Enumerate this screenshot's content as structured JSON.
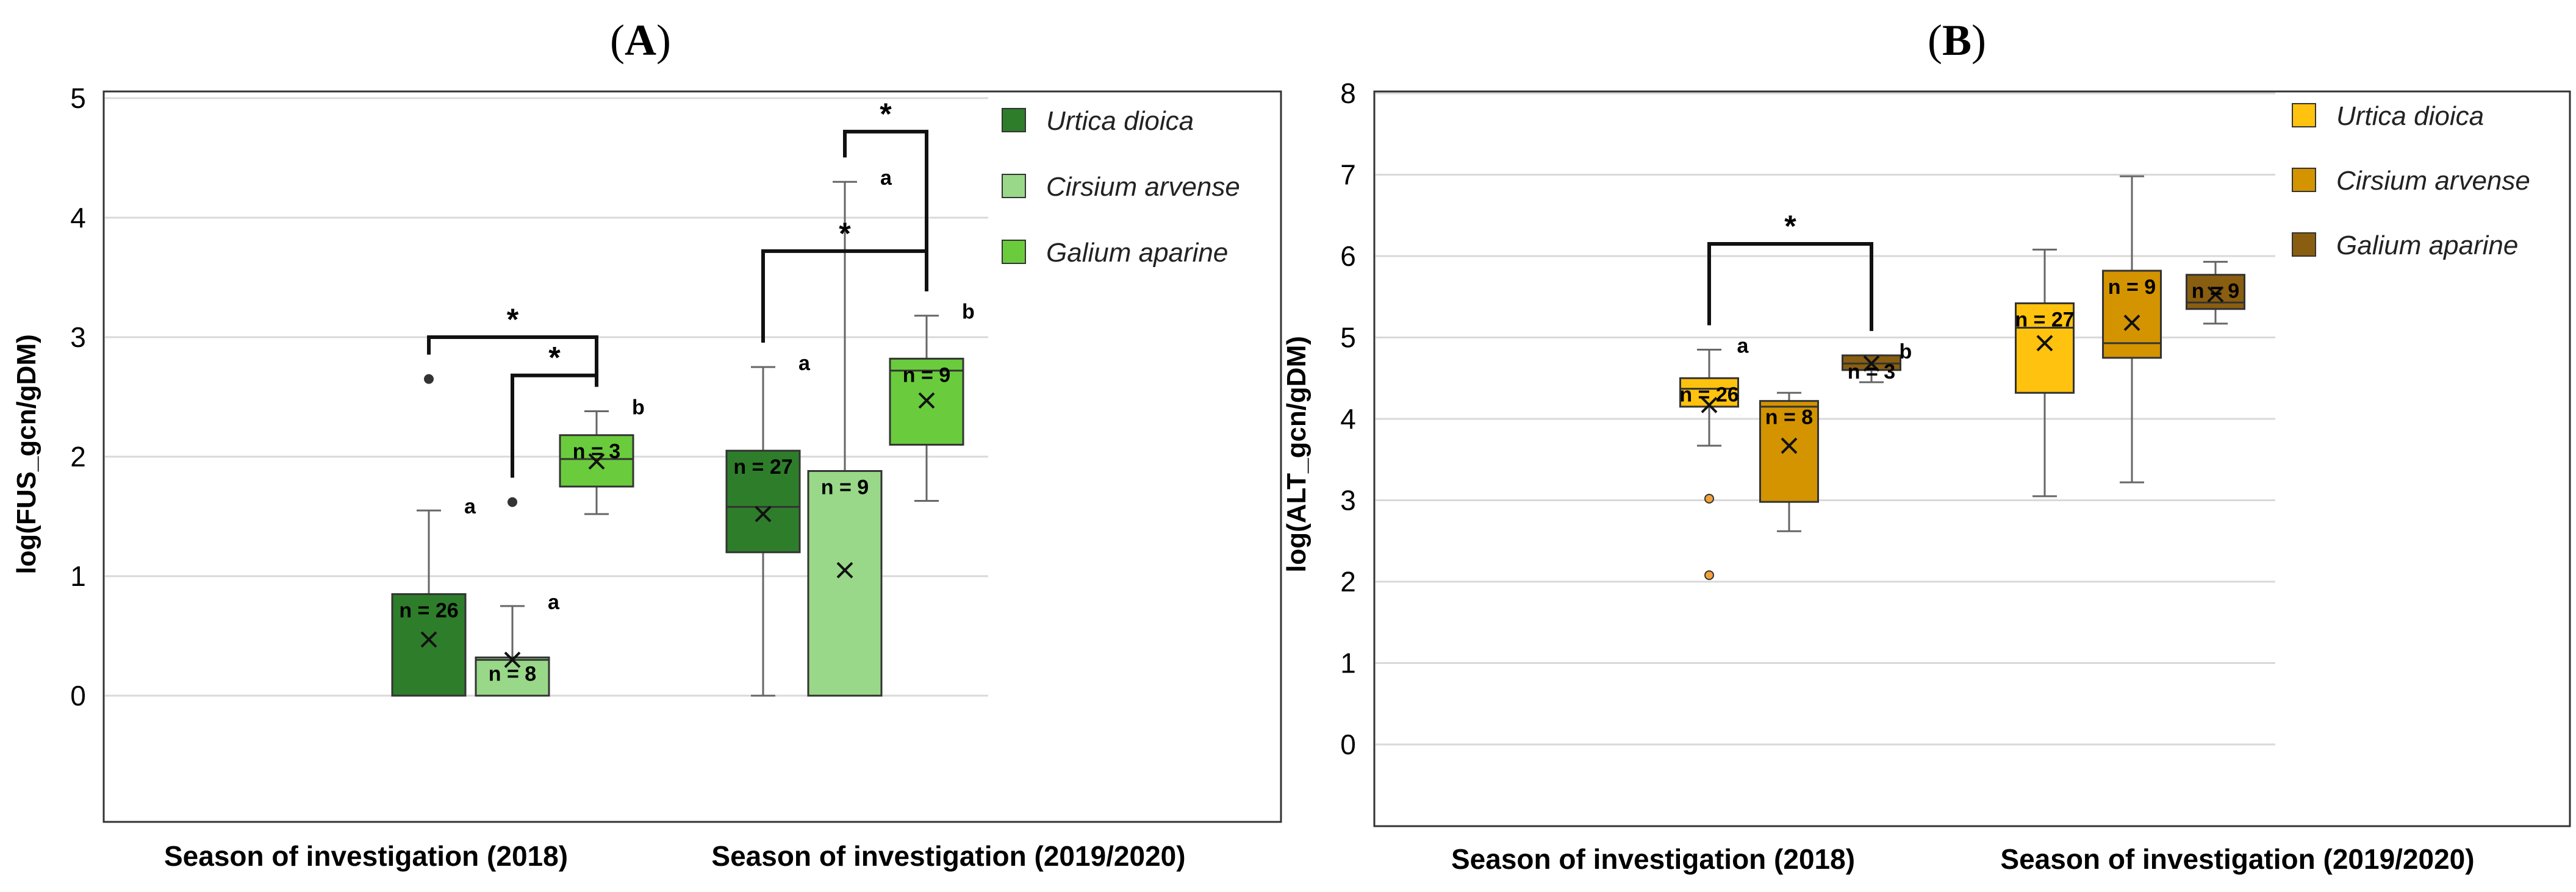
{
  "chart_data": [
    {
      "type": "box",
      "panel_label": "A",
      "ylabel": "log(FUS_gcn/gDM)",
      "ylim": [
        -1,
        5
      ],
      "yticks": [
        0,
        1,
        2,
        3,
        4,
        5
      ],
      "gridlines": true,
      "legend_position": "top-right",
      "groups": [
        "Season of investigation (2018)",
        "Season of investigation (2019/2020)"
      ],
      "series": [
        {
          "name": "Urtica dioica",
          "color": "#2e7d2a"
        },
        {
          "name": "Cirsium arvense",
          "color": "#98d888"
        },
        {
          "name": "Galium aparine",
          "color": "#6acc3c"
        }
      ],
      "boxes": [
        {
          "group": 0,
          "series": 0,
          "min": 0,
          "q1": 0,
          "median": 0,
          "q3": 0.85,
          "max": 1.55,
          "mean": 0.47,
          "outliers": [
            2.65
          ],
          "n_label": "n = 26",
          "letter": "a"
        },
        {
          "group": 0,
          "series": 1,
          "min": 0,
          "q1": 0,
          "median": 0.3,
          "q3": 0.32,
          "max": 0.75,
          "mean": 0.3,
          "outliers": [
            1.62
          ],
          "n_label": "n = 8",
          "letter": "a"
        },
        {
          "group": 0,
          "series": 2,
          "min": 1.52,
          "q1": 1.75,
          "median": 1.98,
          "q3": 2.18,
          "max": 2.38,
          "mean": 1.96,
          "outliers": [],
          "n_label": "n = 3",
          "letter": "b"
        },
        {
          "group": 1,
          "series": 0,
          "min": 0,
          "q1": 1.2,
          "median": 1.58,
          "q3": 2.05,
          "max": 2.75,
          "mean": 1.52,
          "outliers": [],
          "n_label": "n = 27",
          "letter": "a"
        },
        {
          "group": 1,
          "series": 1,
          "min": 0,
          "q1": 0,
          "median": 0,
          "q3": 1.88,
          "max": 4.3,
          "mean": 1.05,
          "outliers": [],
          "n_label": "n = 9",
          "letter": "a"
        },
        {
          "group": 1,
          "series": 2,
          "min": 1.63,
          "q1": 2.1,
          "median": 2.72,
          "q3": 2.82,
          "max": 3.18,
          "mean": 2.47,
          "outliers": [],
          "n_label": "n = 9",
          "letter": "b"
        }
      ],
      "significance": [
        {
          "from": [
            0,
            0
          ],
          "to": [
            0,
            2
          ],
          "level": 3.0,
          "label": "*"
        },
        {
          "from": [
            0,
            1
          ],
          "to": [
            0,
            2
          ],
          "level": 2.68,
          "label": "*"
        },
        {
          "from": [
            1,
            0
          ],
          "to": [
            1,
            2
          ],
          "level": 3.72,
          "label": "*"
        },
        {
          "from": [
            1,
            1
          ],
          "to": [
            1,
            2
          ],
          "level": 4.72,
          "label": "*"
        }
      ]
    },
    {
      "type": "box",
      "panel_label": "B",
      "ylabel": "log(ALT_gcn/gDM)",
      "ylim": [
        -1,
        8
      ],
      "yticks": [
        0,
        1,
        2,
        3,
        4,
        5,
        6,
        7,
        8
      ],
      "gridlines": true,
      "legend_position": "top-right",
      "groups": [
        "Season of investigation (2018)",
        "Season of investigation (2019/2020)"
      ],
      "series": [
        {
          "name": "Urtica dioica",
          "color": "#ffc20e"
        },
        {
          "name": "Cirsium arvense",
          "color": "#d39400"
        },
        {
          "name": "Galium aparine",
          "color": "#8a5e10"
        }
      ],
      "boxes": [
        {
          "group": 0,
          "series": 0,
          "min": 3.67,
          "q1": 4.15,
          "median": 4.37,
          "q3": 4.5,
          "max": 4.85,
          "mean": 4.17,
          "outliers": [
            3.02,
            2.08
          ],
          "n_label": "n = 26",
          "letter": "a"
        },
        {
          "group": 0,
          "series": 1,
          "min": 2.62,
          "q1": 2.98,
          "median": 4.15,
          "q3": 4.22,
          "max": 4.32,
          "mean": 3.67,
          "outliers": [],
          "n_label": "n = 8",
          "letter": ""
        },
        {
          "group": 0,
          "series": 2,
          "min": 4.45,
          "q1": 4.6,
          "median": 4.68,
          "q3": 4.78,
          "max": 4.78,
          "mean": 4.68,
          "outliers": [],
          "n_label": "n = 3",
          "letter": "b"
        },
        {
          "group": 1,
          "series": 0,
          "min": 3.05,
          "q1": 4.32,
          "median": 5.12,
          "q3": 5.42,
          "max": 6.08,
          "mean": 4.93,
          "outliers": [],
          "n_label": "n = 27",
          "letter": ""
        },
        {
          "group": 1,
          "series": 1,
          "min": 3.22,
          "q1": 4.75,
          "median": 4.93,
          "q3": 5.82,
          "max": 6.98,
          "mean": 5.18,
          "outliers": [],
          "n_label": "n = 9",
          "letter": ""
        },
        {
          "group": 1,
          "series": 2,
          "min": 5.17,
          "q1": 5.35,
          "median": 5.43,
          "q3": 5.77,
          "max": 5.93,
          "mean": 5.53,
          "outliers": [],
          "n_label": "n = 9",
          "letter": ""
        }
      ],
      "significance": [
        {
          "from": [
            0,
            0
          ],
          "to": [
            0,
            2
          ],
          "level": 6.15,
          "label": "*"
        }
      ]
    }
  ]
}
